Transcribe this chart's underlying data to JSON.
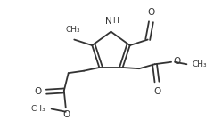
{
  "bg_color": "#ffffff",
  "line_color": "#333333",
  "lw": 1.3,
  "figsize": [
    2.49,
    1.53
  ],
  "dpi": 100,
  "xlim": [
    0.0,
    10.0
  ],
  "ylim": [
    0.0,
    6.0
  ]
}
